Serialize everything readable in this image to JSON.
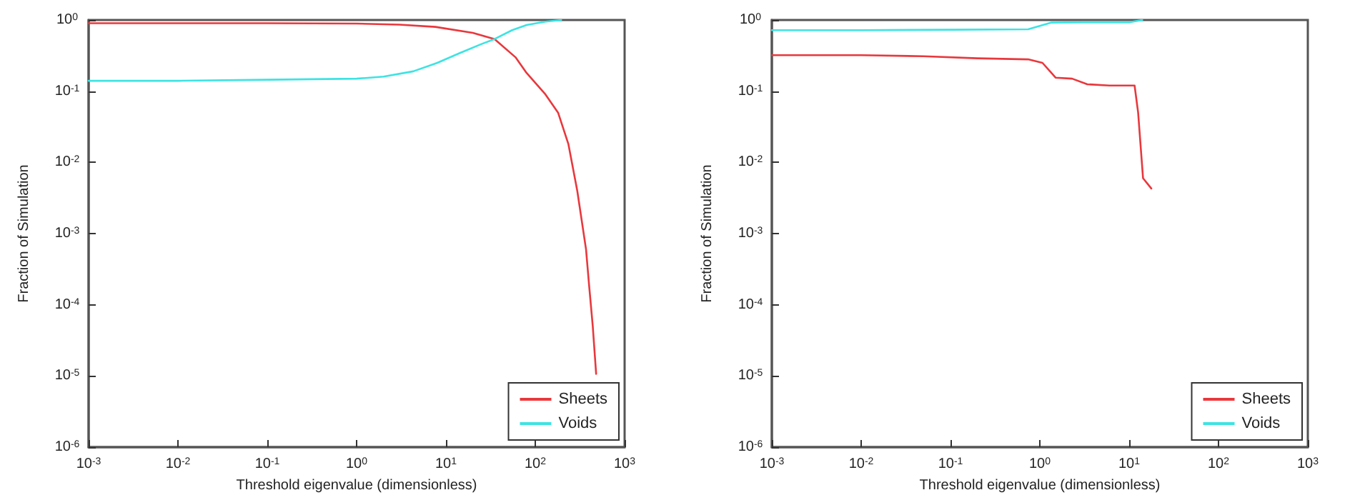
{
  "chart_data": [
    {
      "type": "line",
      "xlabel": "Threshold eigenvalue (dimensionless)",
      "ylabel": "Fraction of Simulation",
      "log": "xy",
      "legend": "bottom right",
      "grid": false,
      "marker": "none",
      "line_style": "solid",
      "xlim": [
        0.001,
        1000
      ],
      "ylim": [
        1e-06,
        1
      ],
      "xticks": [
        {
          "value": 0.001,
          "label": "10$^{-3}$"
        },
        {
          "value": 0.01,
          "label": "10$^{-2}$"
        },
        {
          "value": 0.1,
          "label": "10$^{-1}$"
        },
        {
          "value": 1,
          "label": "10$^{0}$"
        },
        {
          "value": 10,
          "label": "10$^{1}$"
        },
        {
          "value": 100,
          "label": "10$^{2}$"
        },
        {
          "value": 1000,
          "label": "10$^{3}$"
        }
      ],
      "yticks": [
        {
          "value": 1e-06,
          "label": "10$^{-6}$"
        },
        {
          "value": 1e-05,
          "label": "10$^{-5}$"
        },
        {
          "value": 0.0001,
          "label": "10$^{-4}$"
        },
        {
          "value": 0.001,
          "label": "10$^{-3}$"
        },
        {
          "value": 0.01,
          "label": "10$^{-2}$"
        },
        {
          "value": 0.1,
          "label": "10$^{-1}$"
        },
        {
          "value": 1,
          "label": "10$^{0}$"
        }
      ],
      "series": [
        {
          "name": "Sheets",
          "color": "#e8383d",
          "x": [
            0.001,
            0.01,
            0.1,
            1,
            3,
            7.6,
            20,
            35,
            60,
            80,
            130,
            180,
            235,
            295,
            370,
            400,
            440,
            480
          ],
          "values": [
            0.9,
            0.9,
            0.9,
            0.89,
            0.86,
            0.8,
            0.66,
            0.54,
            0.3,
            0.18,
            0.09,
            0.05,
            0.018,
            0.004,
            0.0006,
            0.00019,
            5e-05,
            1.07e-05
          ]
        },
        {
          "name": "Voids",
          "color": "#3de3e3",
          "x": [
            0.001,
            0.01,
            0.1,
            1,
            2,
            4.3,
            8,
            14,
            25,
            35,
            55,
            80,
            130,
            195
          ],
          "values": [
            0.14,
            0.14,
            0.145,
            0.15,
            0.16,
            0.19,
            0.25,
            0.34,
            0.46,
            0.54,
            0.72,
            0.85,
            0.95,
            1.0
          ]
        }
      ]
    },
    {
      "type": "line",
      "xlabel": "Threshold eigenvalue (dimensionless)",
      "ylabel": "Fraction of Simulation",
      "log": "xy",
      "legend": "bottom right",
      "grid": false,
      "marker": "none",
      "line_style": "solid",
      "xlim": [
        0.001,
        1000
      ],
      "ylim": [
        1e-06,
        1
      ],
      "xticks": [
        {
          "value": 0.001,
          "label": "10$^{-3}$"
        },
        {
          "value": 0.01,
          "label": "10$^{-2}$"
        },
        {
          "value": 0.1,
          "label": "10$^{-1}$"
        },
        {
          "value": 1,
          "label": "10$^{0}$"
        },
        {
          "value": 10,
          "label": "10$^{1}$"
        },
        {
          "value": 100,
          "label": "10$^{2}$"
        },
        {
          "value": 1000,
          "label": "10$^{3}$"
        }
      ],
      "yticks": [
        {
          "value": 1e-06,
          "label": "10$^{-6}$"
        },
        {
          "value": 1e-05,
          "label": "10$^{-5}$"
        },
        {
          "value": 0.0001,
          "label": "10$^{-4}$"
        },
        {
          "value": 0.001,
          "label": "10$^{-3}$"
        },
        {
          "value": 0.01,
          "label": "10$^{-2}$"
        },
        {
          "value": 0.1,
          "label": "10$^{-1}$"
        },
        {
          "value": 1,
          "label": "10$^{0}$"
        }
      ],
      "series": [
        {
          "name": "Sheets",
          "color": "#e8383d",
          "x": [
            0.001,
            0.01,
            0.05,
            0.2,
            0.74,
            1.07,
            1.35,
            1.5,
            2.3,
            3.4,
            6,
            11.5,
            12.6,
            14.3,
            17.7
          ],
          "values": [
            0.32,
            0.32,
            0.31,
            0.29,
            0.28,
            0.25,
            0.18,
            0.155,
            0.15,
            0.125,
            0.12,
            0.12,
            0.05,
            0.006,
            0.0043
          ]
        },
        {
          "name": "Voids",
          "color": "#3de3e3",
          "x": [
            0.001,
            0.01,
            0.1,
            0.74,
            1.35,
            3,
            10,
            14
          ],
          "values": [
            0.72,
            0.72,
            0.73,
            0.74,
            0.92,
            0.93,
            0.93,
            1.0
          ]
        }
      ]
    }
  ]
}
